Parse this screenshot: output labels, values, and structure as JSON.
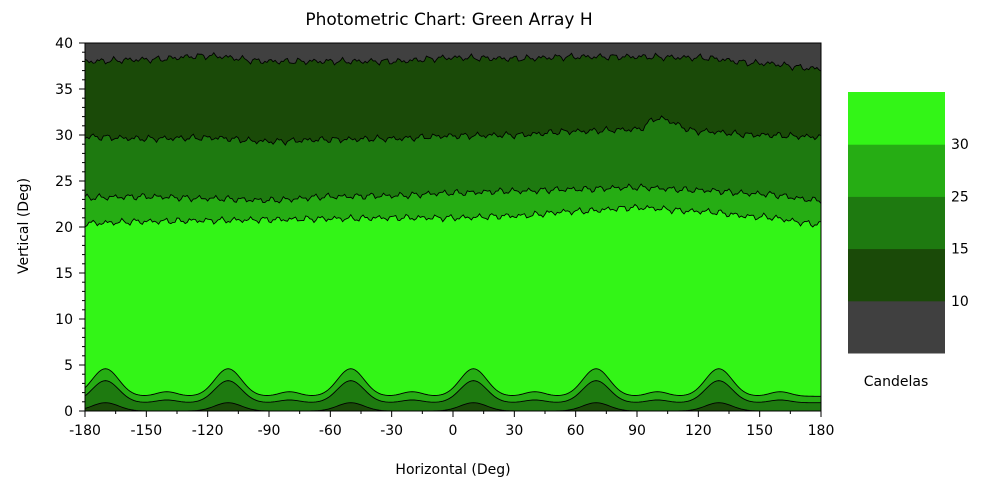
{
  "chart_data": {
    "type": "filled-contour",
    "title": "Photometric Chart: Green Array H",
    "xlabel": "Horizontal (Deg)",
    "ylabel": "Vertical (Deg)",
    "xlim": [
      -180,
      180
    ],
    "ylim": [
      0,
      40
    ],
    "x_ticks": [
      "-180",
      "-150",
      "-120",
      "-90",
      "-60",
      "-30",
      "0",
      "30",
      "60",
      "90",
      "120",
      "150",
      "180"
    ],
    "y_ticks": [
      "0",
      "5",
      "10",
      "15",
      "20",
      "25",
      "30",
      "35",
      "40"
    ],
    "colorbar": {
      "title": "Candelas",
      "tick_labels": [
        "10",
        "15",
        "25",
        "30"
      ],
      "bands": [
        {
          "color": "#404040"
        },
        {
          "color": "#1a4a08"
        },
        {
          "color": "#1e7a10"
        },
        {
          "color": "#26ad14"
        },
        {
          "color": "#33f517"
        }
      ]
    },
    "background_color": "#404040",
    "upper_contours": [
      {
        "level": 10,
        "color": "#1a4a08",
        "x": [
          -180,
          -150,
          -120,
          -90,
          -60,
          -30,
          0,
          30,
          60,
          90,
          120,
          150,
          180
        ],
        "y": [
          38.0,
          38.2,
          38.6,
          38.0,
          38.0,
          38.0,
          38.4,
          38.3,
          38.5,
          38.5,
          38.4,
          37.8,
          37.2
        ]
      },
      {
        "level": 15,
        "color": "#1e7a10",
        "x": [
          -180,
          -150,
          -120,
          -90,
          -60,
          -30,
          0,
          30,
          60,
          90,
          100,
          120,
          150,
          180
        ],
        "y": [
          29.8,
          29.6,
          29.7,
          29.3,
          29.5,
          29.6,
          29.9,
          30.0,
          30.4,
          30.6,
          31.8,
          30.4,
          30.0,
          29.8
        ]
      },
      {
        "level": 25,
        "color": "#26ad14",
        "x": [
          -180,
          -150,
          -120,
          -90,
          -60,
          -30,
          0,
          30,
          60,
          90,
          120,
          150,
          180
        ],
        "y": [
          23.2,
          23.3,
          23.1,
          22.9,
          23.3,
          23.4,
          23.7,
          23.9,
          24.1,
          24.3,
          24.0,
          23.6,
          22.9
        ]
      },
      {
        "level": 30,
        "color": "#33f517",
        "x": [
          -180,
          -150,
          -120,
          -90,
          -60,
          -30,
          0,
          30,
          60,
          90,
          120,
          150,
          180
        ],
        "y": [
          20.4,
          20.6,
          20.7,
          20.8,
          20.9,
          21.0,
          21.0,
          21.2,
          21.7,
          22.1,
          21.7,
          21.1,
          20.3
        ]
      }
    ],
    "lower_contours": {
      "peaks_x": [
        -170,
        -110,
        -50,
        10,
        70,
        130
      ],
      "secondary_peaks_x": [
        -140,
        -80,
        -20,
        40,
        100,
        160
      ],
      "levels": [
        {
          "level": 25,
          "color": "#26ad14",
          "base": 1.6,
          "peak": 4.6,
          "secondary": 2.1
        },
        {
          "level": 15,
          "color": "#1e7a10",
          "base": 0.9,
          "peak": 3.3,
          "secondary": 1.2
        },
        {
          "level": 10,
          "color": "#1a4a08",
          "base": 0.0,
          "peak": 0.9,
          "secondary": 0.0
        }
      ]
    }
  }
}
